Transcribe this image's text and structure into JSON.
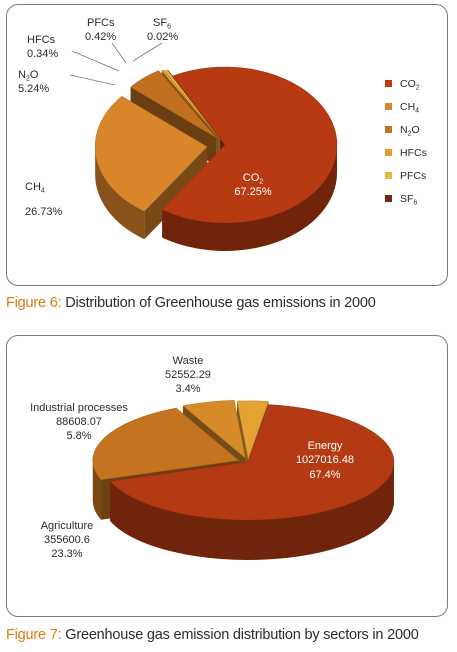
{
  "figures": [
    {
      "caption_prefix": "Figure 6:",
      "caption_text": " Distribution of Greenhouse gas emissions in 2000",
      "chart_data": {
        "type": "pie",
        "title": "",
        "categories": [
          "CO2",
          "CH4",
          "N2O",
          "HFCs",
          "PFCs",
          "SF6"
        ],
        "values": [
          67.25,
          26.73,
          5.24,
          0.34,
          0.42,
          0.02
        ],
        "value_labels": [
          "67.25%",
          "26.73%",
          "5.24%",
          "0.34%",
          "0.42%",
          "0.02%"
        ],
        "colors": [
          "#b83a12",
          "#d9862b",
          "#c0701e",
          "#e39a2e",
          "#eab63e",
          "#6e2a12"
        ],
        "legend_position": "right",
        "legend": [
          {
            "base": "CO",
            "sub": "2"
          },
          {
            "base": "CH",
            "sub": "4"
          },
          {
            "base": "N",
            "sub": "2",
            "tail": "O"
          },
          {
            "base": "HFCs",
            "sub": ""
          },
          {
            "base": "PFCs",
            "sub": ""
          },
          {
            "base": "SF",
            "sub": "6"
          }
        ]
      }
    },
    {
      "caption_prefix": "Figure 7:",
      "caption_text": " Greenhouse gas emission distribution by sectors in 2000",
      "chart_data": {
        "type": "pie",
        "title": "",
        "categories": [
          "Energy",
          "Agriculture",
          "Industrial processes",
          "Waste"
        ],
        "values": [
          1027016.48,
          355600.6,
          88608.07,
          52552.29
        ],
        "value_labels": [
          "1027016.48",
          "355600.6",
          "88608.07",
          "52552.29"
        ],
        "percent_labels": [
          "67.4%",
          "23.3%",
          "5.8%",
          "3.4%"
        ],
        "colors": [
          "#b33a12",
          "#c4741e",
          "#d68a28",
          "#e3a233"
        ],
        "legend_position": "none"
      }
    }
  ]
}
